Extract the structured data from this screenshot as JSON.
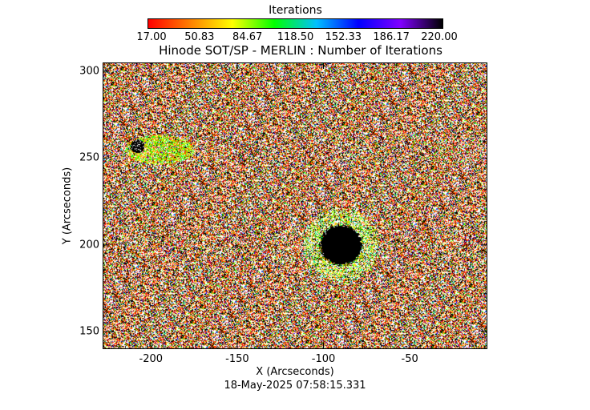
{
  "colorbar": {
    "title": "Iterations",
    "ticks": [
      "17.00",
      "50.83",
      "84.67",
      "118.50",
      "152.33",
      "186.17",
      "220.00"
    ],
    "range": [
      17.0,
      220.0
    ],
    "colormap": [
      "#ff0000",
      "#ff8000",
      "#ffff00",
      "#00ff00",
      "#00c0ff",
      "#0000ff",
      "#8000ff",
      "#000000"
    ]
  },
  "chart_data": {
    "type": "heatmap",
    "title": "Hinode SOT/SP - MERLIN : Number of Iterations",
    "xlabel": "X (Arcseconds)",
    "ylabel": "Y (Arcseconds)",
    "xlim": [
      -228,
      -5
    ],
    "ylim": [
      140,
      305
    ],
    "xticks": [
      -200,
      -150,
      -100,
      -50
    ],
    "yticks": [
      150,
      200,
      250,
      300
    ],
    "value_range": [
      17.0,
      220.0
    ],
    "features": [
      {
        "name": "sunspot-umbra",
        "center": [
          -90,
          200
        ],
        "radius_arcsec": 12,
        "value": 220
      },
      {
        "name": "sunspot-penumbra",
        "center": [
          -90,
          200
        ],
        "radius_arcsec": 22,
        "value_range": [
          50,
          130
        ]
      },
      {
        "name": "pore",
        "center": [
          -208,
          257
        ],
        "radius_arcsec": 4,
        "value": 220
      },
      {
        "name": "pore-halo",
        "center": [
          -195,
          255
        ],
        "radius_arcsec": 12,
        "value_range": [
          60,
          120
        ]
      }
    ],
    "background_value_range": [
      17,
      220
    ],
    "grid": false
  },
  "footer": {
    "timestamp": "18-May-2025 07:58:15.331"
  }
}
